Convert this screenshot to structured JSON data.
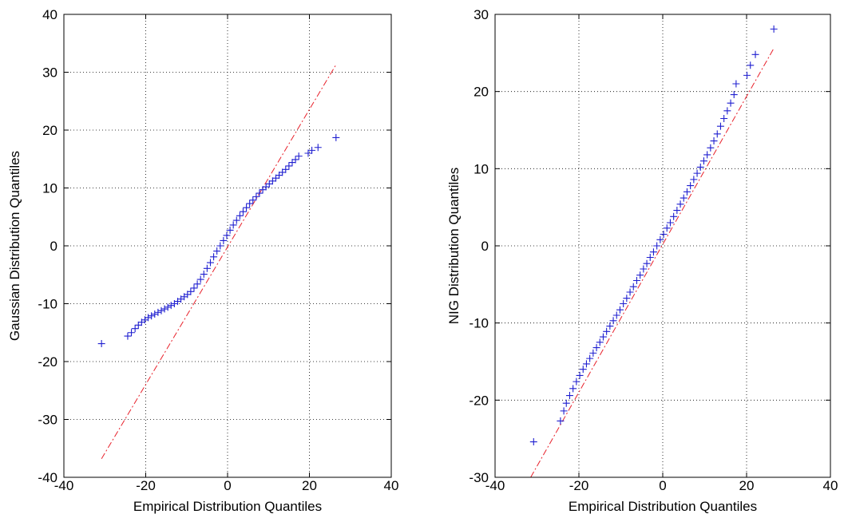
{
  "chart_data": [
    {
      "type": "scatter",
      "title": "",
      "xlabel": "Empirical Distribution Quantiles",
      "ylabel": "Gaussian Distribution Quantiles",
      "xlim": [
        -40,
        40
      ],
      "ylim": [
        -40,
        40
      ],
      "xticks": [
        -40,
        -20,
        0,
        20,
        40
      ],
      "yticks": [
        -40,
        -30,
        -20,
        -10,
        0,
        10,
        20,
        30,
        40
      ],
      "xtick_labels": [
        "-40",
        "-20",
        "0",
        "20",
        "40"
      ],
      "ytick_labels": [
        "-40",
        "-30",
        "-20",
        "-10",
        "0",
        "10",
        "20",
        "30",
        "40"
      ],
      "grid": true,
      "marker": "+",
      "colors": {
        "points": "#1f1fd0",
        "reference_line": "#e8202a"
      },
      "reference_line": {
        "style": "dash-dot",
        "x": [
          -30.8,
          26.5
        ],
        "y": [
          -36.8,
          31.3
        ]
      },
      "series": [
        {
          "x": [
            -30.8,
            -24.4,
            -23.5,
            -22.6,
            -21.8,
            -21.0,
            -20.2,
            -19.4,
            -18.6,
            -17.8,
            -17.0,
            -16.2,
            -15.4,
            -14.6,
            -13.8,
            -13.0,
            -12.2,
            -11.4,
            -10.6,
            -9.8,
            -9.0,
            -8.2,
            -7.4,
            -6.6,
            -5.8,
            -5.0,
            -4.2,
            -3.4,
            -2.6,
            -1.8,
            -1.0,
            -0.2,
            0.6,
            1.4,
            2.2,
            3.0,
            3.8,
            4.6,
            5.4,
            6.2,
            7.0,
            7.8,
            8.6,
            9.4,
            10.2,
            11.0,
            11.8,
            12.6,
            13.4,
            14.2,
            15.0,
            15.8,
            16.6,
            17.4,
            19.7,
            20.6,
            22.1,
            26.5
          ],
          "y": [
            -16.9,
            -15.6,
            -15.0,
            -14.3,
            -13.7,
            -13.2,
            -12.8,
            -12.4,
            -12.1,
            -11.8,
            -11.5,
            -11.2,
            -10.9,
            -10.6,
            -10.3,
            -10.0,
            -9.6,
            -9.2,
            -8.8,
            -8.4,
            -7.9,
            -7.3,
            -6.6,
            -5.8,
            -4.9,
            -3.9,
            -2.9,
            -1.9,
            -0.9,
            0.0,
            0.9,
            1.8,
            2.7,
            3.6,
            4.4,
            5.2,
            5.9,
            6.6,
            7.3,
            7.9,
            8.5,
            9.1,
            9.7,
            10.2,
            10.7,
            11.2,
            11.7,
            12.2,
            12.7,
            13.2,
            13.8,
            14.4,
            14.9,
            15.5,
            16.0,
            16.5,
            17.0,
            18.7
          ]
        }
      ]
    },
    {
      "type": "scatter",
      "title": "",
      "xlabel": "Empirical Distribution Quantiles",
      "ylabel": "NIG Distribution Quantiles",
      "xlim": [
        -40,
        40
      ],
      "ylim": [
        -30,
        30
      ],
      "xticks": [
        -40,
        -20,
        0,
        20,
        40
      ],
      "yticks": [
        -30,
        -20,
        -10,
        0,
        10,
        20,
        30
      ],
      "xtick_labels": [
        "-40",
        "-20",
        "0",
        "20",
        "40"
      ],
      "ytick_labels": [
        "-30",
        "-20",
        "-10",
        "0",
        "10",
        "20",
        "30"
      ],
      "grid": true,
      "marker": "+",
      "colors": {
        "points": "#1f1fd0",
        "reference_line": "#e8202a"
      },
      "reference_line": {
        "style": "dash-dot",
        "x": [
          -31.5,
          26.5
        ],
        "y": [
          -30.0,
          25.6
        ]
      },
      "series": [
        {
          "x": [
            -30.8,
            -24.4,
            -23.6,
            -23.0,
            -22.2,
            -21.4,
            -20.6,
            -19.8,
            -19.0,
            -18.2,
            -17.4,
            -16.6,
            -15.8,
            -15.0,
            -14.2,
            -13.4,
            -12.6,
            -11.8,
            -11.0,
            -10.2,
            -9.4,
            -8.6,
            -7.8,
            -7.0,
            -6.2,
            -5.4,
            -4.6,
            -3.8,
            -3.0,
            -2.2,
            -1.4,
            -0.6,
            0.2,
            1.0,
            1.8,
            2.6,
            3.4,
            4.2,
            5.0,
            5.8,
            6.6,
            7.4,
            8.2,
            9.0,
            9.8,
            10.6,
            11.4,
            12.2,
            13.0,
            13.8,
            14.6,
            15.4,
            16.2,
            17.0,
            17.5,
            20.1,
            20.9,
            22.1,
            26.5
          ],
          "y": [
            -25.4,
            -22.7,
            -21.4,
            -20.4,
            -19.4,
            -18.5,
            -17.6,
            -16.8,
            -16.0,
            -15.3,
            -14.6,
            -13.9,
            -13.2,
            -12.5,
            -11.8,
            -11.1,
            -10.4,
            -9.7,
            -9.0,
            -8.3,
            -7.5,
            -6.8,
            -6.0,
            -5.3,
            -4.5,
            -3.8,
            -3.0,
            -2.3,
            -1.5,
            -0.8,
            0.0,
            0.8,
            1.5,
            2.3,
            3.0,
            3.8,
            4.6,
            5.4,
            6.2,
            7.0,
            7.8,
            8.6,
            9.4,
            10.2,
            11.0,
            11.8,
            12.7,
            13.6,
            14.5,
            15.5,
            16.5,
            17.5,
            18.5,
            19.6,
            21.0,
            22.1,
            23.4,
            24.8,
            28.1
          ]
        }
      ]
    }
  ]
}
